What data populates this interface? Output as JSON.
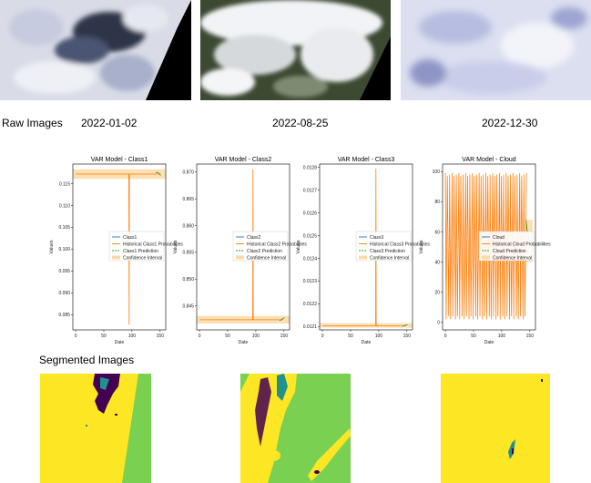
{
  "raw": {
    "label": "Raw Images",
    "dates": [
      "2022-01-02",
      "2022-08-25",
      "2022-12-30"
    ]
  },
  "segmented": {
    "label": "Segmented Images"
  },
  "colors": {
    "class_line": "#1f77b4",
    "historical": "#ff7f0e",
    "prediction": "#2ca02c",
    "ci_fill": "#fcd9a6",
    "seg_yellow": "#fde725",
    "seg_green": "#7ad151",
    "seg_purple": "#440154",
    "seg_teal": "#21918c"
  },
  "chart_data": [
    {
      "type": "line",
      "title": "VAR Model - Class1",
      "xlabel": "Date",
      "ylabel": "Values",
      "xlim": [
        -5,
        160
      ],
      "ylim": [
        0.0815,
        0.1195
      ],
      "xticks": [
        0,
        50,
        100,
        150
      ],
      "yticks": [
        0.085,
        0.09,
        0.095,
        0.1,
        0.105,
        0.11,
        0.115
      ],
      "ytick_labels": [
        "0.085",
        "0.090",
        "0.095",
        "0.100",
        "0.105",
        "0.110",
        "0.115"
      ],
      "legend": [
        "Class1",
        "Historical Class1 Probabilities",
        "Class1 Prediction",
        "Confidence Interval"
      ],
      "legend_placement": "center-right",
      "historical": {
        "x_range": [
          0,
          148
        ],
        "base": 0.1172,
        "spikes": [
          {
            "x": 95,
            "y": 0.0827
          }
        ]
      },
      "prediction": {
        "x": [
          142,
          145,
          148,
          151
        ],
        "y": [
          0.1175,
          0.1176,
          0.1174,
          0.1169
        ]
      },
      "ci": [
        0.1161,
        0.1183
      ]
    },
    {
      "type": "line",
      "title": "VAR Model - Class2",
      "xlabel": "Date",
      "ylabel": "Values",
      "xlim": [
        -5,
        160
      ],
      "ylim": [
        0.8405,
        0.8715
      ],
      "xticks": [
        0,
        50,
        100,
        150
      ],
      "yticks": [
        0.845,
        0.85,
        0.855,
        0.86,
        0.865,
        0.87
      ],
      "ytick_labels": [
        "0.845",
        "0.850",
        "0.855",
        "0.860",
        "0.865",
        "0.870"
      ],
      "legend": [
        "Class2",
        "Historical Class2 Probabilities",
        "Class2 Prediction",
        "Confidence Interval"
      ],
      "legend_placement": "center-right",
      "historical": {
        "x_range": [
          0,
          148
        ],
        "base": 0.8424,
        "spikes": [
          {
            "x": 95,
            "y": 0.8705
          }
        ]
      },
      "prediction": {
        "x": [
          142,
          145,
          148,
          151
        ],
        "y": [
          0.8422,
          0.8424,
          0.8426,
          0.8428
        ]
      },
      "ci": [
        0.8417,
        0.8431
      ]
    },
    {
      "type": "line",
      "title": "VAR Model - Class3",
      "xlabel": "Date",
      "ylabel": "Values",
      "xlim": [
        -5,
        160
      ],
      "ylim": [
        0.012085,
        0.012815
      ],
      "xticks": [
        0,
        50,
        100,
        150
      ],
      "yticks": [
        0.0121,
        0.0122,
        0.0123,
        0.0124,
        0.0125,
        0.0126,
        0.0127,
        0.0128
      ],
      "ytick_labels": [
        "0.0121",
        "0.0122",
        "0.0123",
        "0.0124",
        "0.0125",
        "0.0126",
        "0.0127",
        "0.0128"
      ],
      "legend": [
        "Class3",
        "Historical Class3 Probabilities",
        "Class3 Prediction",
        "Confidence Interval"
      ],
      "legend_placement": "center-right",
      "historical": {
        "x_range": [
          0,
          148
        ],
        "base": 0.012103,
        "spikes": [
          {
            "x": 95,
            "y": 0.012795
          }
        ]
      },
      "prediction": {
        "x": [
          142,
          145,
          148,
          151
        ],
        "y": [
          0.0121,
          0.012103,
          0.012106,
          0.012108
        ]
      },
      "ci": [
        0.012095,
        0.012115
      ]
    },
    {
      "type": "line",
      "title": "VAR Model - Cloud",
      "xlabel": "Date",
      "ylabel": "Values",
      "xlim": [
        -5,
        160
      ],
      "ylim": [
        -5,
        105
      ],
      "xticks": [
        0,
        50,
        100,
        150
      ],
      "yticks": [
        0,
        20,
        40,
        60,
        80,
        100
      ],
      "ytick_labels": [
        "0",
        "20",
        "40",
        "60",
        "80",
        "100"
      ],
      "legend": [
        "Cloud",
        "Historical Cloud Probabilities",
        "Cloud Prediction",
        "Confidence Interval"
      ],
      "legend_placement": "center-right",
      "historical": {
        "x_range": [
          0,
          145
        ],
        "oscillating": true,
        "high": 99,
        "low": 1
      },
      "prediction": {
        "x": [
          143,
          145,
          148,
          151
        ],
        "y": [
          68,
          62,
          56,
          53
        ]
      },
      "ci": [
        40,
        68
      ],
      "ci_x": [
        143,
        155
      ]
    }
  ]
}
